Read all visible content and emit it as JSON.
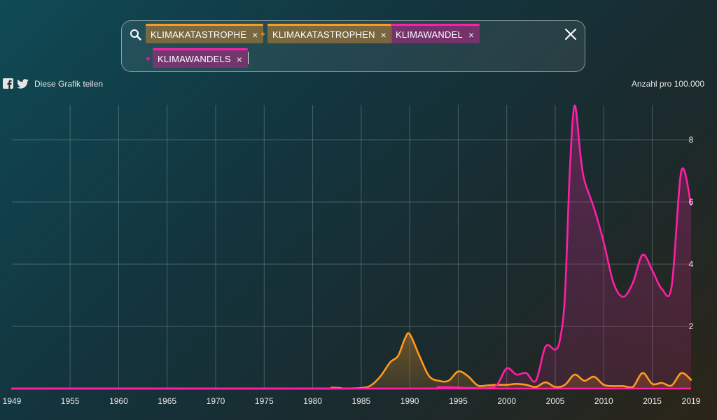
{
  "search": {
    "tags": [
      {
        "label": "KLIMAKATASTROPHE",
        "close": "×",
        "color": "#ff9a1f"
      },
      {
        "label": "KLIMAKATASTROPHEN",
        "close": "×",
        "color": "#ff9a1f",
        "joined": "+"
      },
      {
        "label": "KLIMAWANDEL",
        "close": "×",
        "color": "#ff1fa5"
      },
      {
        "label": "KLIMAWANDELS",
        "close": "×",
        "color": "#ff1fa5",
        "joined": "+"
      }
    ],
    "clear_icon": "close-icon",
    "search_icon": "search-icon"
  },
  "share": {
    "label": "Diese Grafik teilen",
    "icons": [
      "facebook-icon",
      "twitter-icon"
    ]
  },
  "unit_label": "Anzahl pro 100.000",
  "colors": {
    "orange": "#ff9a1f",
    "pink": "#ff1fa5"
  },
  "chart_data": {
    "type": "area",
    "xlim": [
      1949,
      2019
    ],
    "ylim": [
      0,
      9.2
    ],
    "x_ticks": [
      1949,
      1955,
      1960,
      1965,
      1970,
      1975,
      1980,
      1985,
      1990,
      1995,
      2000,
      2005,
      2010,
      2015,
      2019
    ],
    "y_ticks": [
      2,
      4,
      6,
      8
    ],
    "grid": true,
    "series": [
      {
        "color": "#ff9a1f",
        "points": [
          [
            1949,
            0
          ],
          [
            1980,
            0
          ],
          [
            1982,
            0.03
          ],
          [
            1983,
            0
          ],
          [
            1985,
            0.02
          ],
          [
            1986,
            0.1
          ],
          [
            1987,
            0.4
          ],
          [
            1988,
            0.85
          ],
          [
            1988.8,
            1.05
          ],
          [
            1989.5,
            1.6
          ],
          [
            1990,
            1.75
          ],
          [
            1991,
            1.05
          ],
          [
            1992,
            0.4
          ],
          [
            1993,
            0.25
          ],
          [
            1994,
            0.25
          ],
          [
            1995,
            0.55
          ],
          [
            1996,
            0.4
          ],
          [
            1997,
            0.1
          ],
          [
            1998,
            0.1
          ],
          [
            1999,
            0.12
          ],
          [
            2000,
            0.12
          ],
          [
            2001,
            0.15
          ],
          [
            2002,
            0.12
          ],
          [
            2003,
            0.05
          ],
          [
            2004,
            0.2
          ],
          [
            2005,
            0.05
          ],
          [
            2006,
            0.12
          ],
          [
            2007,
            0.45
          ],
          [
            2008,
            0.25
          ],
          [
            2009,
            0.38
          ],
          [
            2010,
            0.12
          ],
          [
            2011,
            0.08
          ],
          [
            2012,
            0.08
          ],
          [
            2013,
            0.05
          ],
          [
            2014,
            0.5
          ],
          [
            2015,
            0.15
          ],
          [
            2016,
            0.18
          ],
          [
            2017,
            0.1
          ],
          [
            2018,
            0.5
          ],
          [
            2019,
            0.28
          ]
        ]
      },
      {
        "color": "#ff1fa5",
        "points": [
          [
            1949,
            0
          ],
          [
            1990,
            0
          ],
          [
            1993,
            0.05
          ],
          [
            1996,
            0.02
          ],
          [
            1998,
            0.02
          ],
          [
            1999,
            0.12
          ],
          [
            2000,
            0.65
          ],
          [
            2001,
            0.45
          ],
          [
            2002,
            0.5
          ],
          [
            2003,
            0.25
          ],
          [
            2004,
            1.35
          ],
          [
            2005,
            1.25
          ],
          [
            2005.5,
            1.6
          ],
          [
            2006,
            3.0
          ],
          [
            2006.5,
            7.0
          ],
          [
            2007,
            9.1
          ],
          [
            2007.6,
            7.5
          ],
          [
            2008,
            6.7
          ],
          [
            2009,
            5.8
          ],
          [
            2010,
            4.7
          ],
          [
            2011,
            3.4
          ],
          [
            2012,
            2.95
          ],
          [
            2013,
            3.4
          ],
          [
            2014,
            4.3
          ],
          [
            2015,
            3.8
          ],
          [
            2016,
            3.2
          ],
          [
            2017,
            3.3
          ],
          [
            2018,
            7.0
          ],
          [
            2019,
            5.9
          ]
        ]
      }
    ]
  }
}
